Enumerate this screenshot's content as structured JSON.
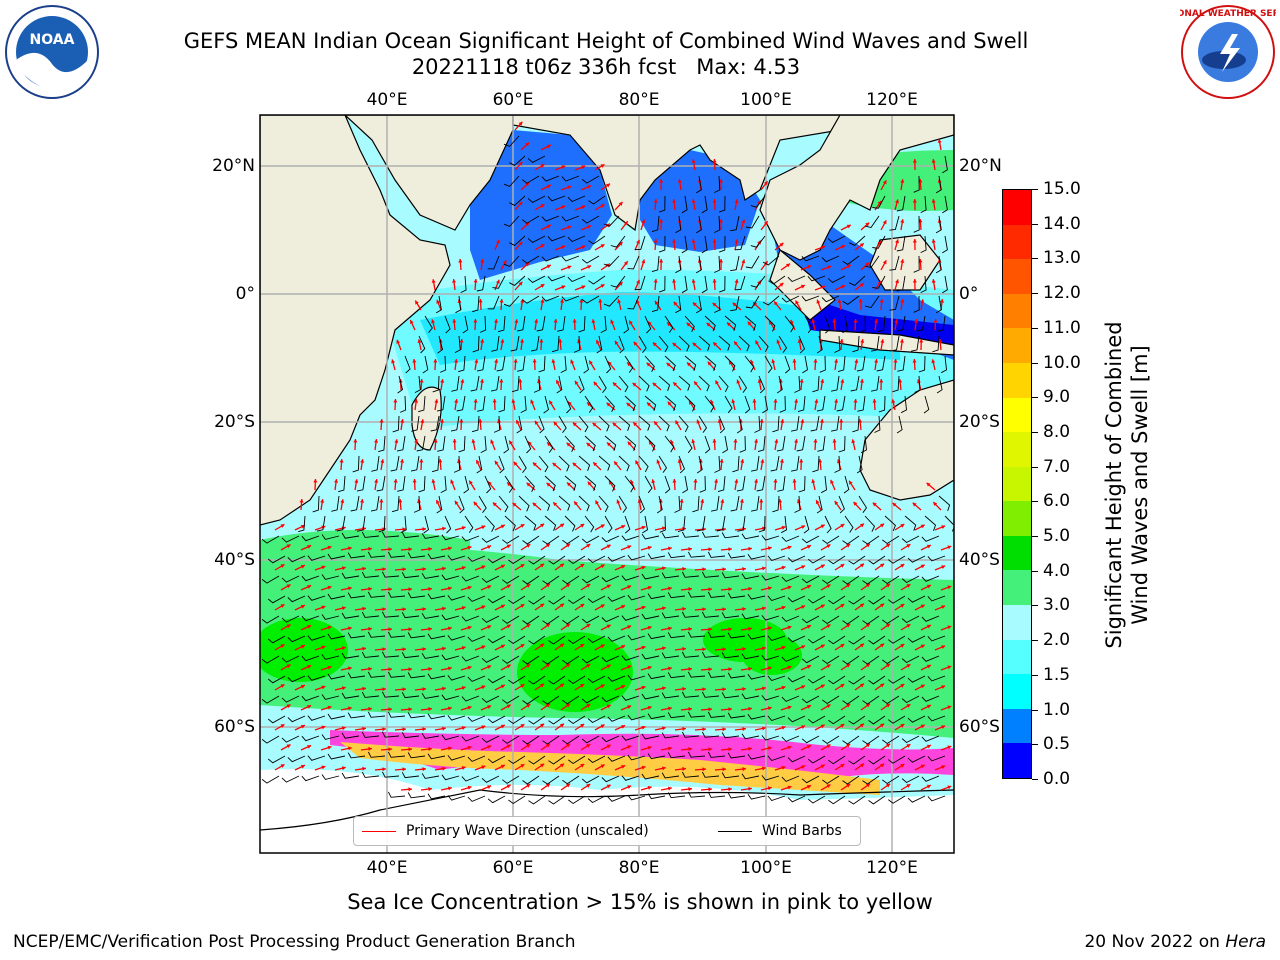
{
  "title": {
    "line1": "GEFS MEAN Indian Ocean Significant Height of Combined Wind Waves and Swell",
    "line2": "20221118 t06z 336h fcst   Max: 4.53"
  },
  "logos": {
    "left": "noaa-logo",
    "right": "nws-logo",
    "left_text": "NOAA",
    "right_text": "NATIONAL WEATHER SERVICE"
  },
  "map": {
    "lon_labels": [
      "40°E",
      "60°E",
      "80°E",
      "100°E",
      "120°E"
    ],
    "lat_labels": [
      "20°N",
      "0°",
      "20°S",
      "40°S",
      "60°S"
    ],
    "land_color": "#efeedd",
    "ocean_colors": {
      "low": "#0055ff",
      "mid": "#22e8ff",
      "light": "#a8fbff",
      "green": "#44f07a",
      "bright_green": "#00ee00",
      "ice_pink": "#ff44dd",
      "ice_yellow": "#ffcc44"
    }
  },
  "colorbar": {
    "label_line1": "Significant Height of Combined",
    "label_line2": "Wind Waves and Swell [m]",
    "ticks": [
      "15.0",
      "14.0",
      "13.0",
      "12.0",
      "11.0",
      "10.0",
      "9.0",
      "8.0",
      "7.0",
      "6.0",
      "5.0",
      "4.0",
      "3.0",
      "2.0",
      "1.5",
      "1.0",
      "0.5",
      "0.0"
    ],
    "colors": [
      "#ff0000",
      "#ff2a00",
      "#ff5500",
      "#ff7f00",
      "#ffaa00",
      "#ffd400",
      "#ffff00",
      "#e0f500",
      "#c8f500",
      "#7fee00",
      "#00dd00",
      "#44f07a",
      "#a8fbff",
      "#55ffff",
      "#00ffff",
      "#007fff",
      "#0000ff"
    ]
  },
  "legend": {
    "wave_label": "Primary Wave Direction (unscaled)",
    "wind_label": "Wind Barbs",
    "wave_color": "#ff0000",
    "wind_color": "#000000"
  },
  "ice_note": "Sea Ice Concentration > 15% is shown in pink to yellow",
  "footer": {
    "left": "NCEP/EMC/Verification Post Processing Product Generation Branch",
    "right_prefix": "20 Nov 2022 on ",
    "right_host": "Hera"
  }
}
